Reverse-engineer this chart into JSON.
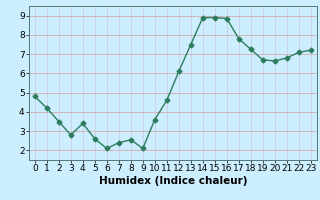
{
  "x": [
    0,
    1,
    2,
    3,
    4,
    5,
    6,
    7,
    8,
    9,
    10,
    11,
    12,
    13,
    14,
    15,
    16,
    17,
    18,
    19,
    20,
    21,
    22,
    23
  ],
  "y": [
    4.8,
    4.2,
    3.5,
    2.8,
    3.4,
    2.6,
    2.1,
    2.4,
    2.55,
    2.1,
    3.6,
    4.6,
    6.1,
    7.5,
    8.9,
    8.9,
    8.85,
    7.8,
    7.25,
    6.7,
    6.65,
    6.8,
    7.1,
    7.2
  ],
  "line_color": "#2e7d5e",
  "marker": "D",
  "marker_size": 2.5,
  "bg_color": "#cceeff",
  "grid_color_h": "#d4a0a0",
  "grid_color_v": "#c8c8d8",
  "xlabel": "Humidex (Indice chaleur)",
  "xlim": [
    -0.5,
    23.5
  ],
  "ylim": [
    1.5,
    9.5
  ],
  "yticks": [
    2,
    3,
    4,
    5,
    6,
    7,
    8,
    9
  ],
  "xticks": [
    0,
    1,
    2,
    3,
    4,
    5,
    6,
    7,
    8,
    9,
    10,
    11,
    12,
    13,
    14,
    15,
    16,
    17,
    18,
    19,
    20,
    21,
    22,
    23
  ],
  "xlabel_fontsize": 7.5,
  "tick_fontsize": 6.5,
  "line_width": 1.0
}
